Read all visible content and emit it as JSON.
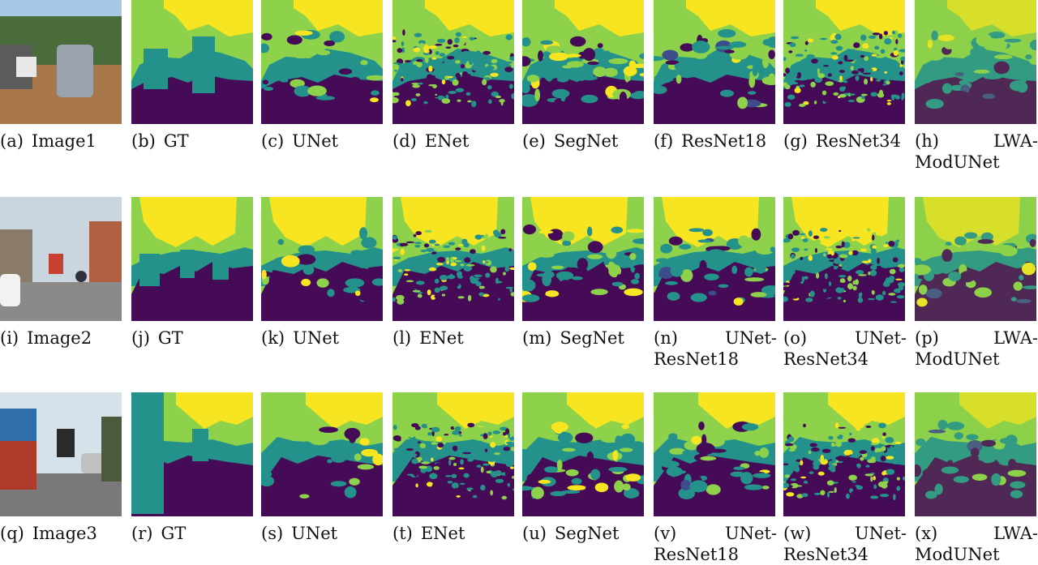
{
  "figure": {
    "rows": [
      {
        "panels": [
          {
            "kind": "photo",
            "scene": "street1",
            "label": "(a)",
            "title": "Image1"
          },
          {
            "kind": "seg",
            "variant": "gt",
            "label": "(b)",
            "title": "GT"
          },
          {
            "kind": "seg",
            "variant": "smooth",
            "label": "(c)",
            "title": "UNet"
          },
          {
            "kind": "seg",
            "variant": "noisy",
            "label": "(d)",
            "title": "ENet"
          },
          {
            "kind": "seg",
            "variant": "medium",
            "label": "(e)",
            "title": "SegNet"
          },
          {
            "kind": "seg",
            "variant": "blobby",
            "label": "(f)",
            "title": "ResNet18"
          },
          {
            "kind": "seg",
            "variant": "noisy2",
            "label": "(g)",
            "title": "ResNet34"
          },
          {
            "kind": "seg",
            "variant": "lwa",
            "label": "(h)",
            "title": "LWA-",
            "title2": "ModUNet"
          }
        ]
      },
      {
        "panels": [
          {
            "kind": "photo",
            "scene": "street2",
            "label": "(i)",
            "title": "Image2"
          },
          {
            "kind": "seg",
            "variant": "gt",
            "label": "(j)",
            "title": "GT"
          },
          {
            "kind": "seg",
            "variant": "smooth",
            "label": "(k)",
            "title": "UNet"
          },
          {
            "kind": "seg",
            "variant": "noisy",
            "label": "(l)",
            "title": "ENet"
          },
          {
            "kind": "seg",
            "variant": "medium",
            "label": "(m)",
            "title": "SegNet"
          },
          {
            "kind": "seg",
            "variant": "blobby",
            "label": "(n)",
            "title": "UNet-",
            "title2": "ResNet18"
          },
          {
            "kind": "seg",
            "variant": "noisy2",
            "label": "(o)",
            "title": "UNet-",
            "title2": "ResNet34"
          },
          {
            "kind": "seg",
            "variant": "lwa",
            "label": "(p)",
            "title": "LWA-",
            "title2": "ModUNet"
          }
        ]
      },
      {
        "panels": [
          {
            "kind": "photo",
            "scene": "street3",
            "label": "(q)",
            "title": "Image3"
          },
          {
            "kind": "seg",
            "variant": "gt",
            "label": "(r)",
            "title": "GT"
          },
          {
            "kind": "seg",
            "variant": "smooth",
            "label": "(s)",
            "title": "UNet"
          },
          {
            "kind": "seg",
            "variant": "noisy",
            "label": "(t)",
            "title": "ENet"
          },
          {
            "kind": "seg",
            "variant": "medium",
            "label": "(u)",
            "title": "SegNet"
          },
          {
            "kind": "seg",
            "variant": "blobby",
            "label": "(v)",
            "title": "UNet-",
            "title2": "ResNet18"
          },
          {
            "kind": "seg",
            "variant": "noisy2",
            "label": "(w)",
            "title": "UNet-",
            "title2": "ResNet34"
          },
          {
            "kind": "seg",
            "variant": "lwa",
            "label": "(x)",
            "title": "LWA-",
            "title2": "ModUNet"
          }
        ]
      }
    ]
  },
  "colors": {
    "road": "#450b57",
    "vehicle": "#24928b",
    "background": "#8ed24b",
    "sky": "#f6e520",
    "other": "#3d4c8a"
  }
}
